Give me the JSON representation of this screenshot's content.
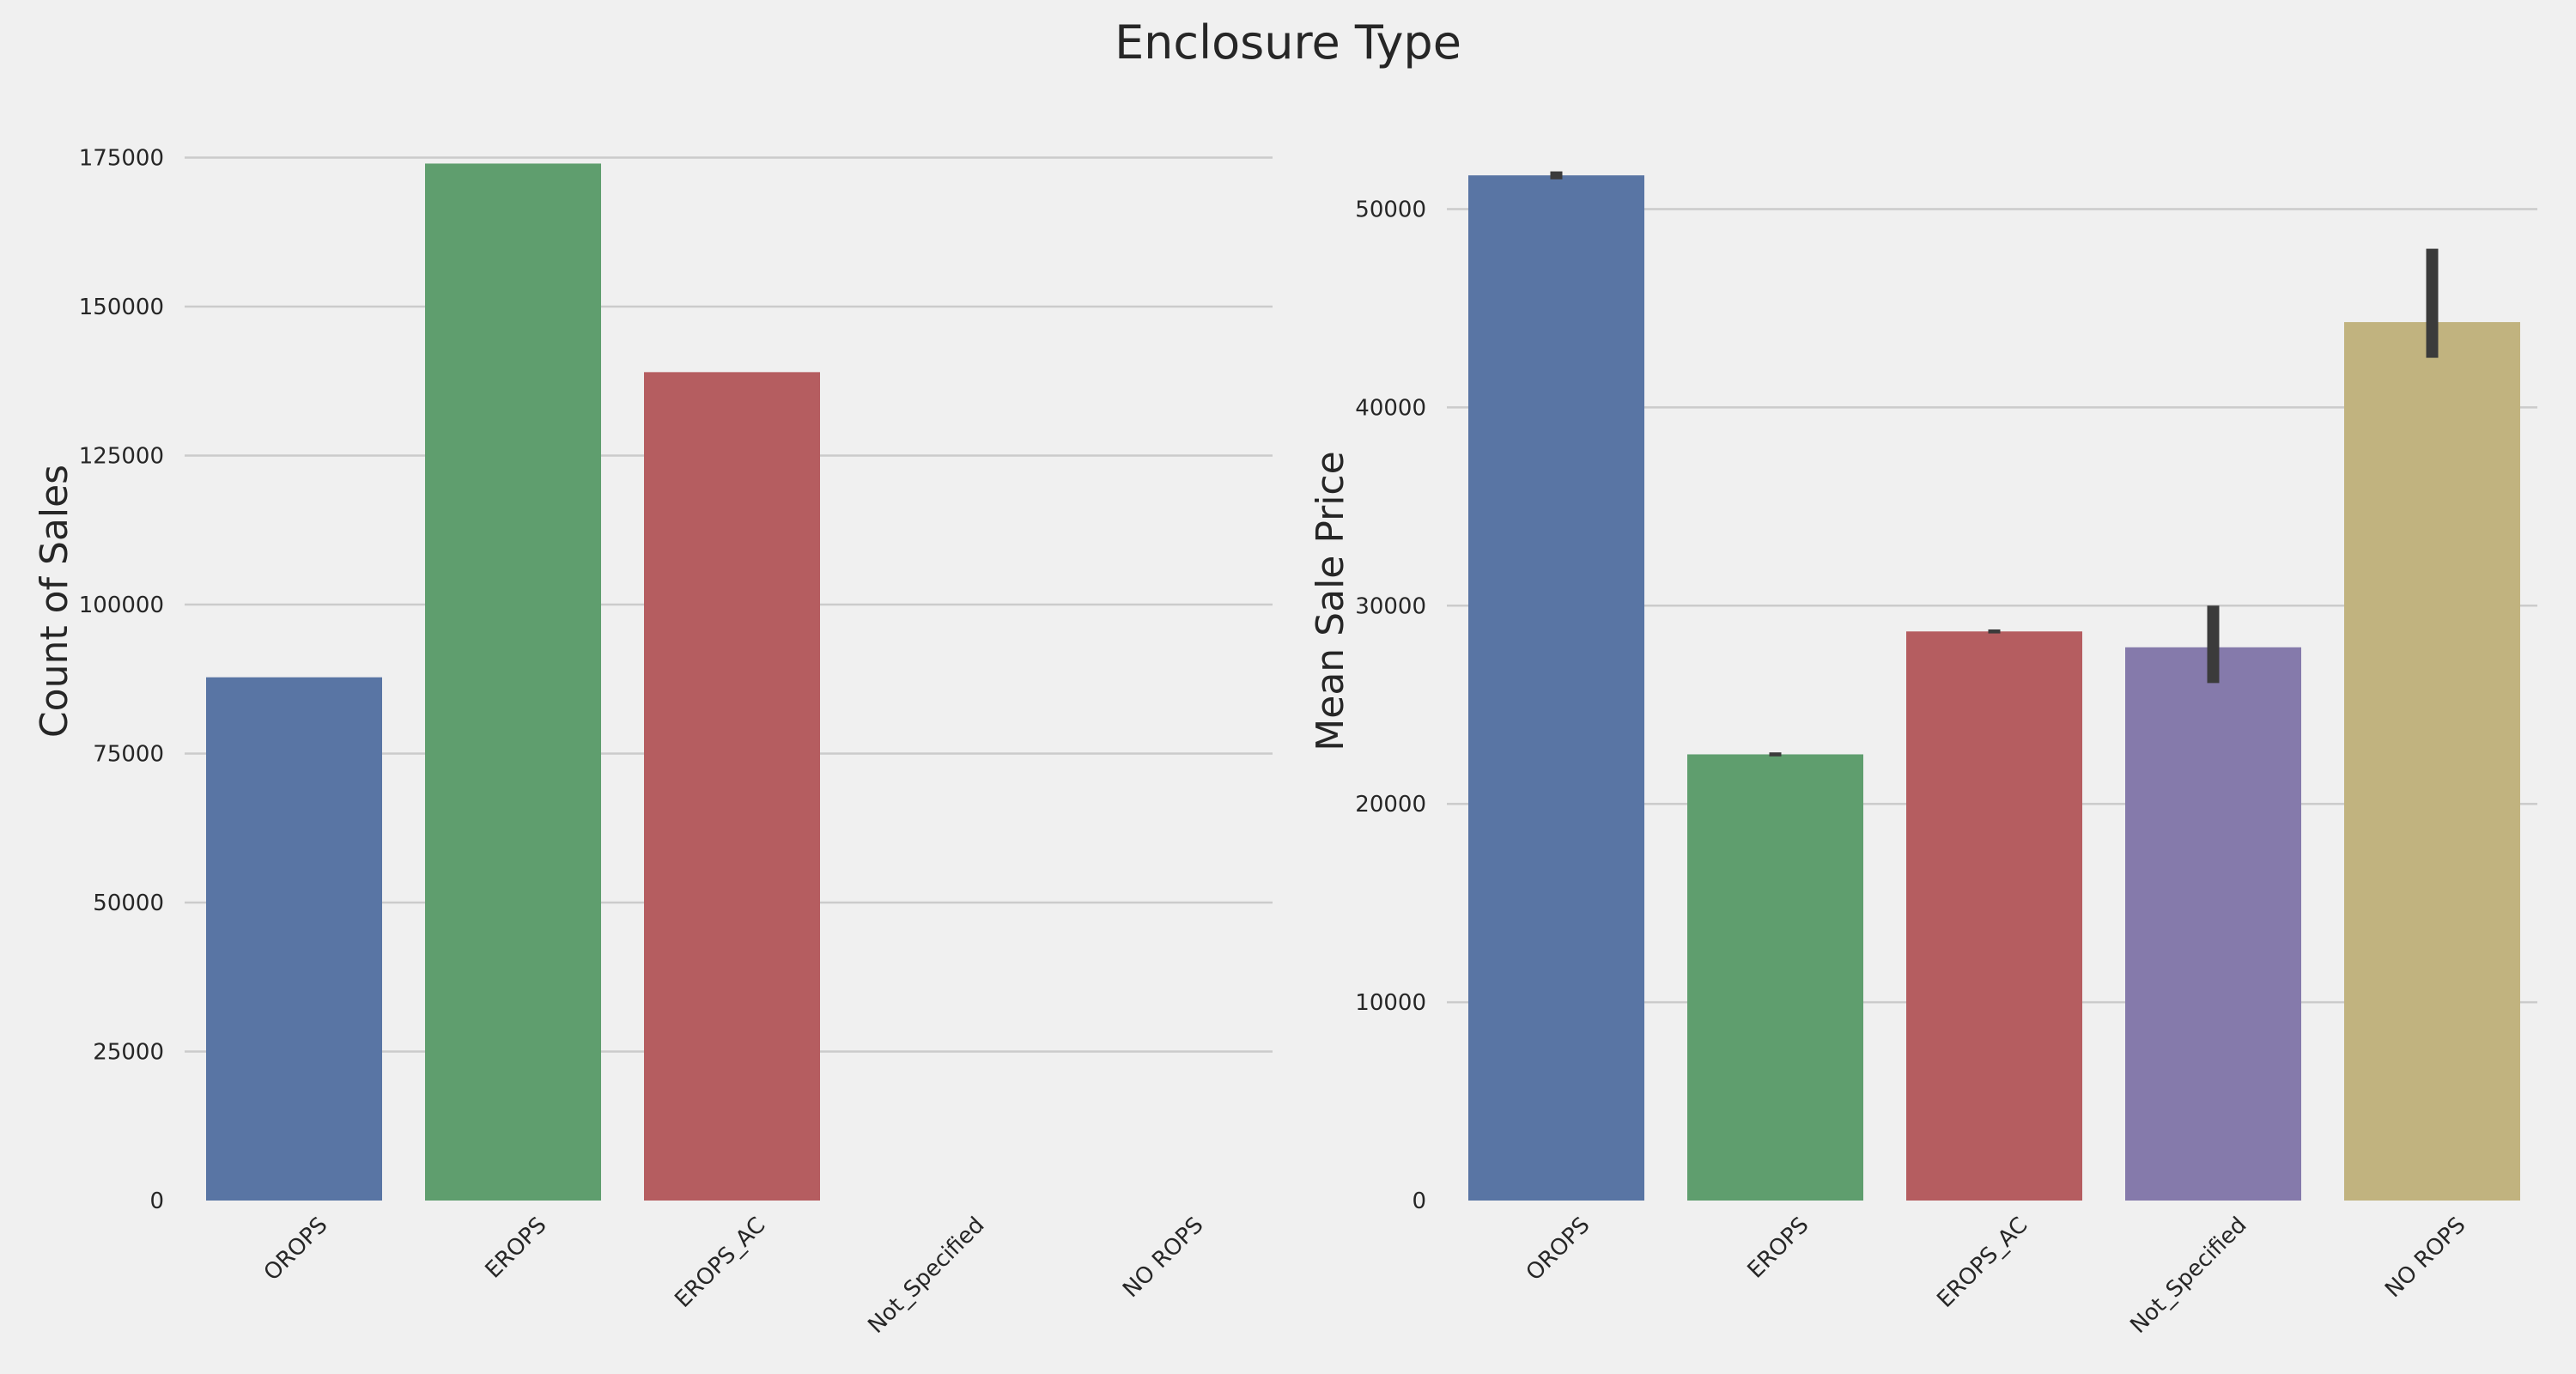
{
  "figure": {
    "title": "Enclosure Type",
    "background": "#f0f0f0",
    "grid_color": "#cbcbcb",
    "text_color": "#262626",
    "errorbar_color": "#3b3b3b"
  },
  "chart_data": [
    {
      "type": "bar",
      "title": "",
      "xlabel": "",
      "ylabel": "Count of Sales",
      "categories": [
        "OROPS",
        "EROPS",
        "EROPS_AC",
        "Not_Specified",
        "NO ROPS"
      ],
      "values": [
        87800,
        174000,
        139000,
        0,
        0
      ],
      "colors": [
        "#5975a4",
        "#5f9e6e",
        "#b55d60",
        "#857aab",
        "#c1b37f"
      ],
      "ylim": [
        0,
        183000
      ],
      "yticks": [
        0,
        25000,
        50000,
        75000,
        100000,
        125000,
        150000,
        175000
      ],
      "ytick_labels": [
        "0",
        "25000",
        "50000",
        "75000",
        "100000",
        "125000",
        "150000",
        "175000"
      ],
      "grid": true
    },
    {
      "type": "bar",
      "title": "",
      "xlabel": "",
      "ylabel": "Mean Sale Price",
      "categories": [
        "OROPS",
        "EROPS",
        "EROPS_AC",
        "Not_Specified",
        "NO ROPS"
      ],
      "values": [
        51700,
        22500,
        28700,
        27900,
        44300
      ],
      "errors": [
        [
          51500,
          51900
        ],
        [
          22400,
          22600
        ],
        [
          28600,
          28800
        ],
        [
          26100,
          30000
        ],
        [
          42500,
          48000
        ]
      ],
      "colors": [
        "#5975a4",
        "#5f9e6e",
        "#b55d60",
        "#857aab",
        "#c1b37f"
      ],
      "ylim": [
        0,
        55000
      ],
      "yticks": [
        0,
        10000,
        20000,
        30000,
        40000,
        50000
      ],
      "ytick_labels": [
        "0",
        "10000",
        "20000",
        "30000",
        "40000",
        "50000"
      ],
      "grid": true
    }
  ]
}
